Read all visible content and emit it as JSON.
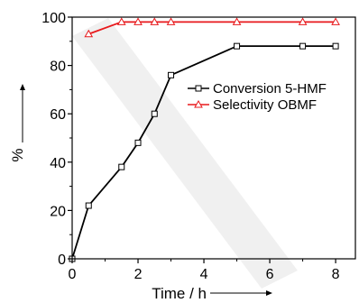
{
  "chart_data": {
    "type": "line",
    "title": "",
    "xlabel": "Time / h",
    "ylabel": "%",
    "xlim": [
      0,
      8.6
    ],
    "ylim": [
      0,
      100
    ],
    "xticks": [
      0,
      2,
      4,
      6,
      8
    ],
    "yticks": [
      0,
      20,
      40,
      60,
      80,
      100
    ],
    "xtick_labels": [
      "0",
      "2",
      "4",
      "6",
      "8"
    ],
    "ytick_labels": [
      "0",
      "20",
      "40",
      "60",
      "80",
      "100"
    ],
    "grid": false,
    "legend_position": "center-right",
    "series": [
      {
        "name": "Conversion 5-HMF",
        "color": "#000000",
        "marker": "square",
        "x": [
          0,
          0.5,
          1.5,
          2,
          2.5,
          3,
          5,
          7,
          8
        ],
        "y": [
          0,
          22,
          38,
          48,
          60,
          76,
          88,
          88,
          88
        ]
      },
      {
        "name": "Selectivity OBMF",
        "color": "#e8191c",
        "marker": "triangle",
        "x": [
          0.5,
          1.5,
          2,
          2.5,
          3,
          5,
          7,
          8
        ],
        "y": [
          93,
          98,
          98,
          98,
          98,
          98,
          98,
          98
        ]
      }
    ]
  }
}
